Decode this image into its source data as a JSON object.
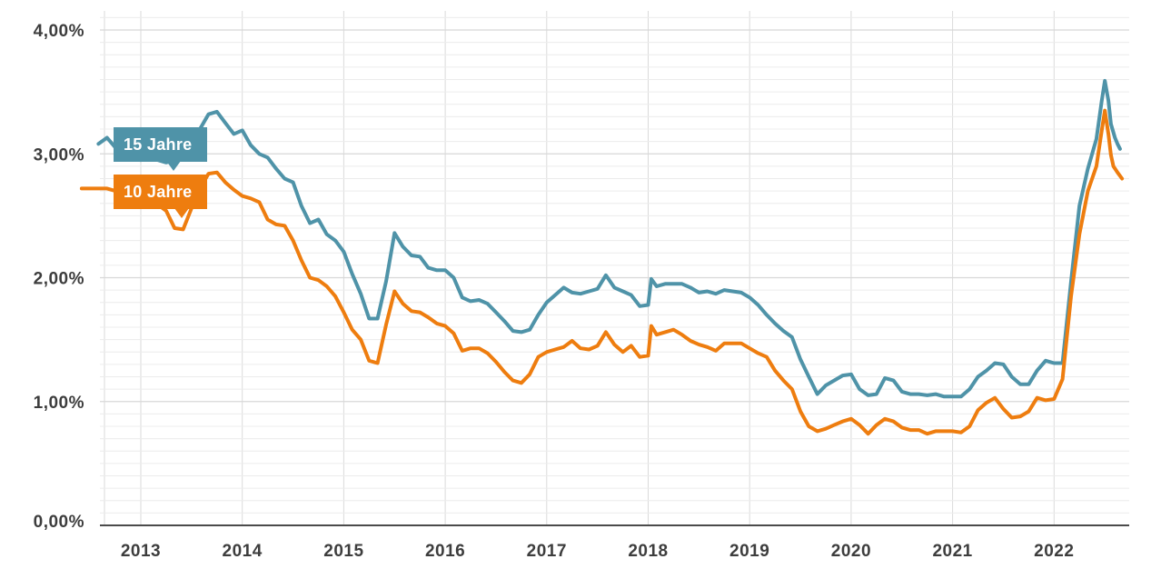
{
  "chart_data": {
    "type": "line",
    "grid": true,
    "legend_position": "callout-boxes-top-left",
    "x_axis": {
      "ticks": [
        {
          "value": 2013,
          "label": "2013"
        },
        {
          "value": 2014,
          "label": "2014"
        },
        {
          "value": 2015,
          "label": "2015"
        },
        {
          "value": 2016,
          "label": "2016"
        },
        {
          "value": 2017,
          "label": "2017"
        },
        {
          "value": 2018,
          "label": "2018"
        },
        {
          "value": 2019,
          "label": "2019"
        },
        {
          "value": 2020,
          "label": "2020"
        },
        {
          "value": 2021,
          "label": "2021"
        },
        {
          "value": 2022,
          "label": "2022"
        }
      ],
      "range": [
        2012.4,
        2022.75
      ]
    },
    "y_axis": {
      "ticks": [
        {
          "value": 0,
          "label": "0,00%"
        },
        {
          "value": 1,
          "label": "1,00%"
        },
        {
          "value": 2,
          "label": "2,00%"
        },
        {
          "value": 3,
          "label": "3,00%"
        },
        {
          "value": 4,
          "label": "4,00%"
        }
      ],
      "range": [
        0,
        4.1
      ],
      "minor_step": 0.1
    },
    "series": [
      {
        "name": "15 Jahre",
        "color": "#4f93a8",
        "points": [
          [
            2012.583,
            3.08
          ],
          [
            2012.667,
            3.13
          ],
          [
            2012.75,
            3.05
          ],
          [
            2012.833,
            2.99
          ],
          [
            2012.917,
            2.96
          ],
          [
            2013.0,
            2.95
          ],
          [
            2013.083,
            2.97
          ],
          [
            2013.167,
            2.95
          ],
          [
            2013.25,
            2.93
          ],
          [
            2013.333,
            2.95
          ],
          [
            2013.417,
            3.0
          ],
          [
            2013.5,
            3.08
          ],
          [
            2013.583,
            3.2
          ],
          [
            2013.667,
            3.32
          ],
          [
            2013.75,
            3.34
          ],
          [
            2013.833,
            3.25
          ],
          [
            2013.917,
            3.16
          ],
          [
            2014.0,
            3.19
          ],
          [
            2014.083,
            3.07
          ],
          [
            2014.167,
            3.0
          ],
          [
            2014.25,
            2.97
          ],
          [
            2014.333,
            2.88
          ],
          [
            2014.417,
            2.8
          ],
          [
            2014.5,
            2.77
          ],
          [
            2014.583,
            2.58
          ],
          [
            2014.667,
            2.44
          ],
          [
            2014.75,
            2.47
          ],
          [
            2014.833,
            2.35
          ],
          [
            2014.917,
            2.3
          ],
          [
            2015.0,
            2.21
          ],
          [
            2015.083,
            2.03
          ],
          [
            2015.167,
            1.87
          ],
          [
            2015.25,
            1.67
          ],
          [
            2015.333,
            1.67
          ],
          [
            2015.417,
            1.97
          ],
          [
            2015.5,
            2.36
          ],
          [
            2015.583,
            2.25
          ],
          [
            2015.667,
            2.18
          ],
          [
            2015.75,
            2.17
          ],
          [
            2015.833,
            2.08
          ],
          [
            2015.917,
            2.06
          ],
          [
            2016.0,
            2.06
          ],
          [
            2016.083,
            2.0
          ],
          [
            2016.167,
            1.84
          ],
          [
            2016.25,
            1.81
          ],
          [
            2016.333,
            1.82
          ],
          [
            2016.417,
            1.79
          ],
          [
            2016.5,
            1.72
          ],
          [
            2016.583,
            1.65
          ],
          [
            2016.667,
            1.57
          ],
          [
            2016.75,
            1.56
          ],
          [
            2016.833,
            1.58
          ],
          [
            2016.917,
            1.7
          ],
          [
            2017.0,
            1.8
          ],
          [
            2017.083,
            1.86
          ],
          [
            2017.167,
            1.92
          ],
          [
            2017.25,
            1.88
          ],
          [
            2017.333,
            1.87
          ],
          [
            2017.417,
            1.89
          ],
          [
            2017.5,
            1.91
          ],
          [
            2017.583,
            2.02
          ],
          [
            2017.667,
            1.92
          ],
          [
            2017.75,
            1.89
          ],
          [
            2017.833,
            1.86
          ],
          [
            2017.917,
            1.77
          ],
          [
            2018.0,
            1.78
          ],
          [
            2018.03,
            1.99
          ],
          [
            2018.083,
            1.93
          ],
          [
            2018.167,
            1.95
          ],
          [
            2018.25,
            1.95
          ],
          [
            2018.333,
            1.95
          ],
          [
            2018.417,
            1.92
          ],
          [
            2018.5,
            1.88
          ],
          [
            2018.583,
            1.89
          ],
          [
            2018.667,
            1.87
          ],
          [
            2018.75,
            1.9
          ],
          [
            2018.833,
            1.89
          ],
          [
            2018.917,
            1.88
          ],
          [
            2019.0,
            1.84
          ],
          [
            2019.083,
            1.78
          ],
          [
            2019.167,
            1.7
          ],
          [
            2019.25,
            1.63
          ],
          [
            2019.333,
            1.57
          ],
          [
            2019.417,
            1.52
          ],
          [
            2019.5,
            1.34
          ],
          [
            2019.583,
            1.2
          ],
          [
            2019.667,
            1.06
          ],
          [
            2019.75,
            1.13
          ],
          [
            2019.833,
            1.17
          ],
          [
            2019.917,
            1.21
          ],
          [
            2020.0,
            1.22
          ],
          [
            2020.083,
            1.1
          ],
          [
            2020.167,
            1.05
          ],
          [
            2020.25,
            1.06
          ],
          [
            2020.333,
            1.19
          ],
          [
            2020.417,
            1.17
          ],
          [
            2020.5,
            1.08
          ],
          [
            2020.583,
            1.06
          ],
          [
            2020.667,
            1.06
          ],
          [
            2020.75,
            1.05
          ],
          [
            2020.833,
            1.06
          ],
          [
            2020.917,
            1.04
          ],
          [
            2021.0,
            1.04
          ],
          [
            2021.083,
            1.04
          ],
          [
            2021.167,
            1.1
          ],
          [
            2021.25,
            1.2
          ],
          [
            2021.333,
            1.25
          ],
          [
            2021.417,
            1.31
          ],
          [
            2021.5,
            1.3
          ],
          [
            2021.583,
            1.2
          ],
          [
            2021.667,
            1.14
          ],
          [
            2021.75,
            1.14
          ],
          [
            2021.833,
            1.25
          ],
          [
            2021.917,
            1.33
          ],
          [
            2022.0,
            1.31
          ],
          [
            2022.083,
            1.31
          ],
          [
            2022.167,
            1.97
          ],
          [
            2022.25,
            2.58
          ],
          [
            2022.333,
            2.88
          ],
          [
            2022.417,
            3.12
          ],
          [
            2022.47,
            3.43
          ],
          [
            2022.5,
            3.59
          ],
          [
            2022.535,
            3.43
          ],
          [
            2022.56,
            3.24
          ],
          [
            2022.6,
            3.13
          ],
          [
            2022.625,
            3.08
          ],
          [
            2022.65,
            3.04
          ]
        ]
      },
      {
        "name": "10 Jahre",
        "color": "#ee7d0f",
        "points": [
          [
            2012.417,
            2.72
          ],
          [
            2012.5,
            2.72
          ],
          [
            2012.583,
            2.72
          ],
          [
            2012.667,
            2.72
          ],
          [
            2012.75,
            2.7
          ],
          [
            2012.833,
            2.67
          ],
          [
            2012.917,
            2.63
          ],
          [
            2013.0,
            2.61
          ],
          [
            2013.083,
            2.63
          ],
          [
            2013.167,
            2.59
          ],
          [
            2013.25,
            2.54
          ],
          [
            2013.333,
            2.4
          ],
          [
            2013.417,
            2.39
          ],
          [
            2013.5,
            2.56
          ],
          [
            2013.583,
            2.72
          ],
          [
            2013.667,
            2.84
          ],
          [
            2013.75,
            2.85
          ],
          [
            2013.833,
            2.77
          ],
          [
            2013.917,
            2.71
          ],
          [
            2014.0,
            2.66
          ],
          [
            2014.083,
            2.64
          ],
          [
            2014.167,
            2.61
          ],
          [
            2014.25,
            2.47
          ],
          [
            2014.333,
            2.43
          ],
          [
            2014.417,
            2.42
          ],
          [
            2014.5,
            2.3
          ],
          [
            2014.583,
            2.14
          ],
          [
            2014.667,
            2.0
          ],
          [
            2014.75,
            1.98
          ],
          [
            2014.833,
            1.93
          ],
          [
            2014.917,
            1.85
          ],
          [
            2015.0,
            1.72
          ],
          [
            2015.083,
            1.58
          ],
          [
            2015.167,
            1.5
          ],
          [
            2015.25,
            1.33
          ],
          [
            2015.333,
            1.31
          ],
          [
            2015.417,
            1.62
          ],
          [
            2015.5,
            1.89
          ],
          [
            2015.583,
            1.79
          ],
          [
            2015.667,
            1.73
          ],
          [
            2015.75,
            1.72
          ],
          [
            2015.833,
            1.68
          ],
          [
            2015.917,
            1.63
          ],
          [
            2016.0,
            1.61
          ],
          [
            2016.083,
            1.55
          ],
          [
            2016.167,
            1.41
          ],
          [
            2016.25,
            1.43
          ],
          [
            2016.333,
            1.43
          ],
          [
            2016.417,
            1.39
          ],
          [
            2016.5,
            1.32
          ],
          [
            2016.583,
            1.24
          ],
          [
            2016.667,
            1.17
          ],
          [
            2016.75,
            1.15
          ],
          [
            2016.833,
            1.22
          ],
          [
            2016.917,
            1.36
          ],
          [
            2017.0,
            1.4
          ],
          [
            2017.083,
            1.42
          ],
          [
            2017.167,
            1.44
          ],
          [
            2017.25,
            1.49
          ],
          [
            2017.333,
            1.43
          ],
          [
            2017.417,
            1.42
          ],
          [
            2017.5,
            1.45
          ],
          [
            2017.583,
            1.56
          ],
          [
            2017.667,
            1.46
          ],
          [
            2017.75,
            1.4
          ],
          [
            2017.833,
            1.45
          ],
          [
            2017.917,
            1.36
          ],
          [
            2018.0,
            1.37
          ],
          [
            2018.03,
            1.61
          ],
          [
            2018.083,
            1.54
          ],
          [
            2018.167,
            1.56
          ],
          [
            2018.25,
            1.58
          ],
          [
            2018.333,
            1.54
          ],
          [
            2018.417,
            1.49
          ],
          [
            2018.5,
            1.46
          ],
          [
            2018.583,
            1.44
          ],
          [
            2018.667,
            1.41
          ],
          [
            2018.75,
            1.47
          ],
          [
            2018.833,
            1.47
          ],
          [
            2018.917,
            1.47
          ],
          [
            2019.0,
            1.43
          ],
          [
            2019.083,
            1.39
          ],
          [
            2019.167,
            1.36
          ],
          [
            2019.25,
            1.25
          ],
          [
            2019.333,
            1.17
          ],
          [
            2019.417,
            1.1
          ],
          [
            2019.5,
            0.92
          ],
          [
            2019.583,
            0.8
          ],
          [
            2019.667,
            0.76
          ],
          [
            2019.75,
            0.78
          ],
          [
            2019.833,
            0.81
          ],
          [
            2019.917,
            0.84
          ],
          [
            2020.0,
            0.86
          ],
          [
            2020.083,
            0.81
          ],
          [
            2020.167,
            0.74
          ],
          [
            2020.25,
            0.81
          ],
          [
            2020.333,
            0.86
          ],
          [
            2020.417,
            0.84
          ],
          [
            2020.5,
            0.79
          ],
          [
            2020.583,
            0.77
          ],
          [
            2020.667,
            0.77
          ],
          [
            2020.75,
            0.74
          ],
          [
            2020.833,
            0.76
          ],
          [
            2020.917,
            0.76
          ],
          [
            2021.0,
            0.76
          ],
          [
            2021.083,
            0.75
          ],
          [
            2021.167,
            0.8
          ],
          [
            2021.25,
            0.93
          ],
          [
            2021.333,
            0.99
          ],
          [
            2021.417,
            1.03
          ],
          [
            2021.5,
            0.94
          ],
          [
            2021.583,
            0.87
          ],
          [
            2021.667,
            0.88
          ],
          [
            2021.75,
            0.92
          ],
          [
            2021.833,
            1.03
          ],
          [
            2021.917,
            1.01
          ],
          [
            2022.0,
            1.02
          ],
          [
            2022.083,
            1.18
          ],
          [
            2022.167,
            1.85
          ],
          [
            2022.25,
            2.35
          ],
          [
            2022.333,
            2.7
          ],
          [
            2022.417,
            2.9
          ],
          [
            2022.47,
            3.19
          ],
          [
            2022.5,
            3.35
          ],
          [
            2022.535,
            3.16
          ],
          [
            2022.56,
            2.99
          ],
          [
            2022.585,
            2.9
          ],
          [
            2022.625,
            2.85
          ],
          [
            2022.67,
            2.8
          ]
        ]
      }
    ]
  }
}
